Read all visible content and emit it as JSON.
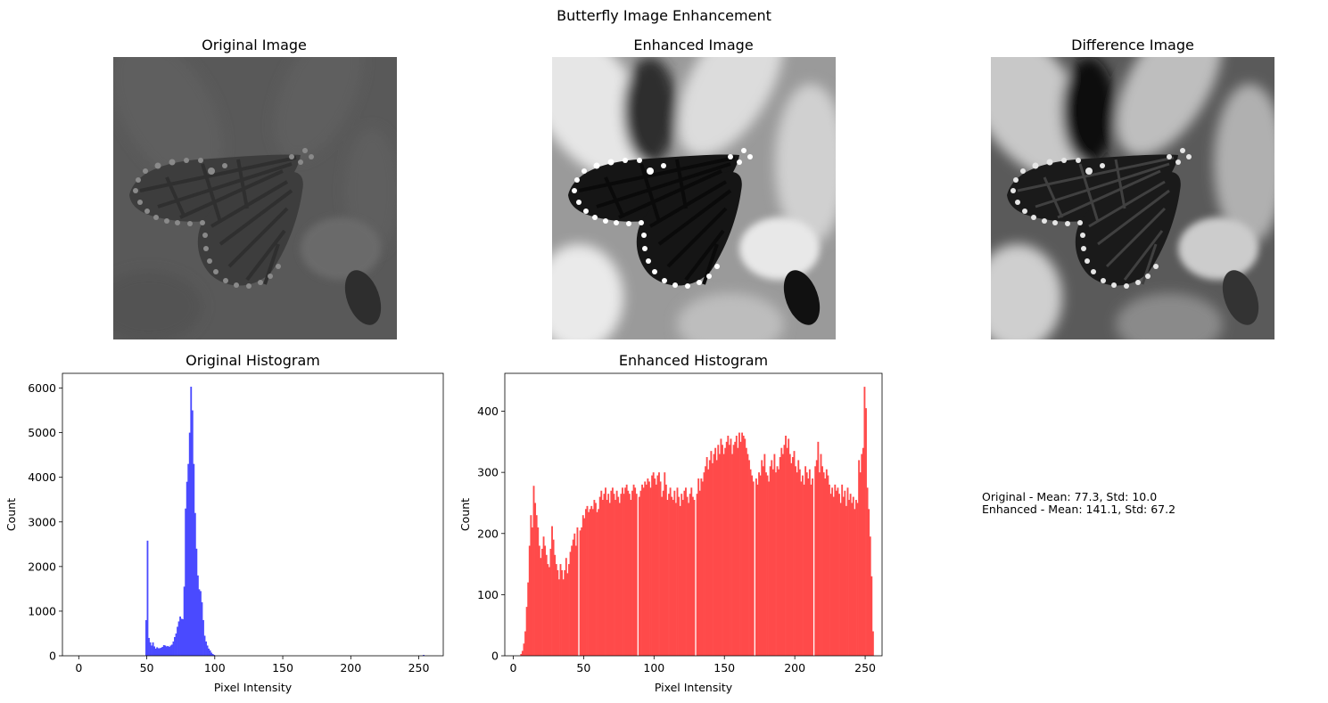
{
  "figure": {
    "title": "Butterfly Image Enhancement",
    "panels": {
      "original_image_title": "Original Image",
      "enhanced_image_title": "Enhanced Image",
      "difference_image_title": "Difference Image"
    },
    "stats": {
      "original": "Original - Mean: 77.3, Std: 10.0",
      "enhanced": "Enhanced - Mean: 141.1, Std: 67.2"
    }
  },
  "chart_data": [
    {
      "type": "bar",
      "title": "Original Histogram",
      "xlabel": "Pixel Intensity",
      "ylabel": "Count",
      "xlim": [
        -12,
        268
      ],
      "ylim": [
        0,
        6330
      ],
      "xticks": [
        0,
        50,
        100,
        150,
        200,
        250
      ],
      "yticks": [
        0,
        1000,
        2000,
        3000,
        4000,
        5000,
        6000
      ],
      "color": "#4a4aff",
      "bins": [
        [
          49,
          800
        ],
        [
          50,
          2580
        ],
        [
          51,
          400
        ],
        [
          52,
          300
        ],
        [
          53,
          230
        ],
        [
          54,
          300
        ],
        [
          55,
          210
        ],
        [
          56,
          160
        ],
        [
          57,
          190
        ],
        [
          58,
          170
        ],
        [
          59,
          170
        ],
        [
          60,
          180
        ],
        [
          61,
          200
        ],
        [
          62,
          240
        ],
        [
          63,
          230
        ],
        [
          64,
          210
        ],
        [
          65,
          220
        ],
        [
          66,
          200
        ],
        [
          67,
          230
        ],
        [
          68,
          250
        ],
        [
          69,
          320
        ],
        [
          70,
          420
        ],
        [
          71,
          500
        ],
        [
          72,
          650
        ],
        [
          73,
          770
        ],
        [
          74,
          880
        ],
        [
          75,
          830
        ],
        [
          76,
          820
        ],
        [
          77,
          1550
        ],
        [
          78,
          3300
        ],
        [
          79,
          3900
        ],
        [
          80,
          4300
        ],
        [
          81,
          5000
        ],
        [
          82,
          6030
        ],
        [
          83,
          5500
        ],
        [
          84,
          4300
        ],
        [
          85,
          3200
        ],
        [
          86,
          2400
        ],
        [
          87,
          1800
        ],
        [
          88,
          1490
        ],
        [
          89,
          1450
        ],
        [
          90,
          1200
        ],
        [
          91,
          800
        ],
        [
          92,
          450
        ],
        [
          93,
          320
        ],
        [
          94,
          230
        ],
        [
          95,
          160
        ],
        [
          96,
          120
        ],
        [
          97,
          70
        ],
        [
          98,
          40
        ],
        [
          99,
          20
        ],
        [
          253,
          20
        ]
      ]
    },
    {
      "type": "bar",
      "title": "Enhanced Histogram",
      "xlabel": "Pixel Intensity",
      "ylabel": "Count",
      "xlim": [
        -6,
        262
      ],
      "ylim": [
        0,
        462
      ],
      "xticks": [
        0,
        50,
        100,
        150,
        200,
        250
      ],
      "yticks": [
        0,
        100,
        200,
        300,
        400
      ],
      "color": "#ff4a4a",
      "bins": [
        [
          5,
          3
        ],
        [
          6,
          8
        ],
        [
          7,
          20
        ],
        [
          8,
          40
        ],
        [
          9,
          80
        ],
        [
          10,
          120
        ],
        [
          11,
          180
        ],
        [
          12,
          230
        ],
        [
          13,
          210
        ],
        [
          14,
          278
        ],
        [
          15,
          250
        ],
        [
          16,
          230
        ],
        [
          17,
          210
        ],
        [
          18,
          180
        ],
        [
          19,
          160
        ],
        [
          20,
          175
        ],
        [
          21,
          195
        ],
        [
          22,
          180
        ],
        [
          23,
          165
        ],
        [
          24,
          150
        ],
        [
          25,
          145
        ],
        [
          26,
          175
        ],
        [
          27,
          212
        ],
        [
          28,
          190
        ],
        [
          29,
          165
        ],
        [
          30,
          150
        ],
        [
          31,
          140
        ],
        [
          32,
          125
        ],
        [
          33,
          150
        ],
        [
          34,
          140
        ],
        [
          35,
          125
        ],
        [
          36,
          140
        ],
        [
          37,
          160
        ],
        [
          38,
          135
        ],
        [
          39,
          150
        ],
        [
          40,
          170
        ],
        [
          41,
          180
        ],
        [
          42,
          190
        ],
        [
          43,
          200
        ],
        [
          44,
          180
        ],
        [
          45,
          210
        ],
        [
          46,
          0
        ],
        [
          47,
          205
        ],
        [
          48,
          210
        ],
        [
          49,
          230
        ],
        [
          50,
          225
        ],
        [
          51,
          240
        ],
        [
          52,
          245
        ],
        [
          53,
          235
        ],
        [
          54,
          240
        ],
        [
          55,
          245
        ],
        [
          56,
          240
        ],
        [
          57,
          255
        ],
        [
          58,
          250
        ],
        [
          59,
          235
        ],
        [
          60,
          240
        ],
        [
          61,
          260
        ],
        [
          62,
          270
        ],
        [
          63,
          255
        ],
        [
          64,
          265
        ],
        [
          65,
          275
        ],
        [
          66,
          255
        ],
        [
          67,
          265
        ],
        [
          68,
          250
        ],
        [
          69,
          270
        ],
        [
          70,
          275
        ],
        [
          71,
          265
        ],
        [
          72,
          255
        ],
        [
          73,
          270
        ],
        [
          74,
          260
        ],
        [
          75,
          250
        ],
        [
          76,
          265
        ],
        [
          77,
          275
        ],
        [
          78,
          265
        ],
        [
          79,
          275
        ],
        [
          80,
          280
        ],
        [
          81,
          270
        ],
        [
          82,
          265
        ],
        [
          83,
          255
        ],
        [
          84,
          270
        ],
        [
          85,
          280
        ],
        [
          86,
          275
        ],
        [
          87,
          265
        ],
        [
          88,
          0
        ],
        [
          89,
          260
        ],
        [
          90,
          270
        ],
        [
          91,
          280
        ],
        [
          92,
          275
        ],
        [
          93,
          285
        ],
        [
          94,
          280
        ],
        [
          95,
          290
        ],
        [
          96,
          285
        ],
        [
          97,
          275
        ],
        [
          98,
          295
        ],
        [
          99,
          300
        ],
        [
          100,
          290
        ],
        [
          101,
          280
        ],
        [
          102,
          295
        ],
        [
          103,
          300
        ],
        [
          104,
          285
        ],
        [
          105,
          260
        ],
        [
          106,
          270
        ],
        [
          107,
          300
        ],
        [
          108,
          280
        ],
        [
          109,
          255
        ],
        [
          110,
          265
        ],
        [
          111,
          275
        ],
        [
          112,
          260
        ],
        [
          113,
          255
        ],
        [
          114,
          270
        ],
        [
          115,
          250
        ],
        [
          116,
          275
        ],
        [
          117,
          260
        ],
        [
          118,
          245
        ],
        [
          119,
          265
        ],
        [
          120,
          255
        ],
        [
          121,
          270
        ],
        [
          122,
          275
        ],
        [
          123,
          260
        ],
        [
          124,
          250
        ],
        [
          125,
          265
        ],
        [
          126,
          275
        ],
        [
          127,
          260
        ],
        [
          128,
          255
        ],
        [
          129,
          0
        ],
        [
          130,
          265
        ],
        [
          131,
          290
        ],
        [
          132,
          270
        ],
        [
          133,
          290
        ],
        [
          134,
          285
        ],
        [
          135,
          300
        ],
        [
          136,
          310
        ],
        [
          137,
          325
        ],
        [
          138,
          305
        ],
        [
          139,
          320
        ],
        [
          140,
          335
        ],
        [
          141,
          315
        ],
        [
          142,
          330
        ],
        [
          143,
          340
        ],
        [
          144,
          320
        ],
        [
          145,
          345
        ],
        [
          146,
          330
        ],
        [
          147,
          355
        ],
        [
          148,
          345
        ],
        [
          149,
          330
        ],
        [
          150,
          340
        ],
        [
          151,
          350
        ],
        [
          152,
          360
        ],
        [
          153,
          345
        ],
        [
          154,
          355
        ],
        [
          155,
          330
        ],
        [
          156,
          345
        ],
        [
          157,
          350
        ],
        [
          158,
          360
        ],
        [
          159,
          340
        ],
        [
          160,
          365
        ],
        [
          161,
          350
        ],
        [
          162,
          365
        ],
        [
          163,
          360
        ],
        [
          164,
          355
        ],
        [
          165,
          340
        ],
        [
          166,
          330
        ],
        [
          167,
          320
        ],
        [
          168,
          305
        ],
        [
          169,
          295
        ],
        [
          170,
          285
        ],
        [
          171,
          0
        ],
        [
          172,
          290
        ],
        [
          173,
          280
        ],
        [
          174,
          300
        ],
        [
          175,
          295
        ],
        [
          176,
          320
        ],
        [
          177,
          310
        ],
        [
          178,
          330
        ],
        [
          179,
          300
        ],
        [
          180,
          295
        ],
        [
          181,
          285
        ],
        [
          182,
          310
        ],
        [
          183,
          320
        ],
        [
          184,
          305
        ],
        [
          185,
          330
        ],
        [
          186,
          300
        ],
        [
          187,
          310
        ],
        [
          188,
          305
        ],
        [
          189,
          325
        ],
        [
          190,
          340
        ],
        [
          191,
          330
        ],
        [
          192,
          345
        ],
        [
          193,
          360
        ],
        [
          194,
          340
        ],
        [
          195,
          355
        ],
        [
          196,
          330
        ],
        [
          197,
          315
        ],
        [
          198,
          325
        ],
        [
          199,
          335
        ],
        [
          200,
          310
        ],
        [
          201,
          300
        ],
        [
          202,
          320
        ],
        [
          203,
          305
        ],
        [
          204,
          285
        ],
        [
          205,
          295
        ],
        [
          206,
          280
        ],
        [
          207,
          310
        ],
        [
          208,
          300
        ],
        [
          209,
          290
        ],
        [
          210,
          305
        ],
        [
          211,
          280
        ],
        [
          212,
          290
        ],
        [
          213,
          0
        ],
        [
          214,
          310
        ],
        [
          215,
          320
        ],
        [
          216,
          350
        ],
        [
          217,
          300
        ],
        [
          218,
          330
        ],
        [
          219,
          310
        ],
        [
          220,
          300
        ],
        [
          221,
          290
        ],
        [
          222,
          305
        ],
        [
          223,
          295
        ],
        [
          224,
          280
        ],
        [
          225,
          265
        ],
        [
          226,
          275
        ],
        [
          227,
          260
        ],
        [
          228,
          280
        ],
        [
          229,
          270
        ],
        [
          230,
          275
        ],
        [
          231,
          265
        ],
        [
          232,
          250
        ],
        [
          233,
          280
        ],
        [
          234,
          260
        ],
        [
          235,
          270
        ],
        [
          236,
          245
        ],
        [
          237,
          275
        ],
        [
          238,
          255
        ],
        [
          239,
          265
        ],
        [
          240,
          250
        ],
        [
          241,
          260
        ],
        [
          242,
          240
        ],
        [
          243,
          255
        ],
        [
          244,
          250
        ],
        [
          245,
          320
        ],
        [
          246,
          300
        ],
        [
          247,
          330
        ],
        [
          248,
          340
        ],
        [
          249,
          440
        ],
        [
          250,
          405
        ],
        [
          251,
          275
        ],
        [
          252,
          240
        ],
        [
          253,
          195
        ],
        [
          254,
          130
        ],
        [
          255,
          40
        ]
      ]
    }
  ]
}
